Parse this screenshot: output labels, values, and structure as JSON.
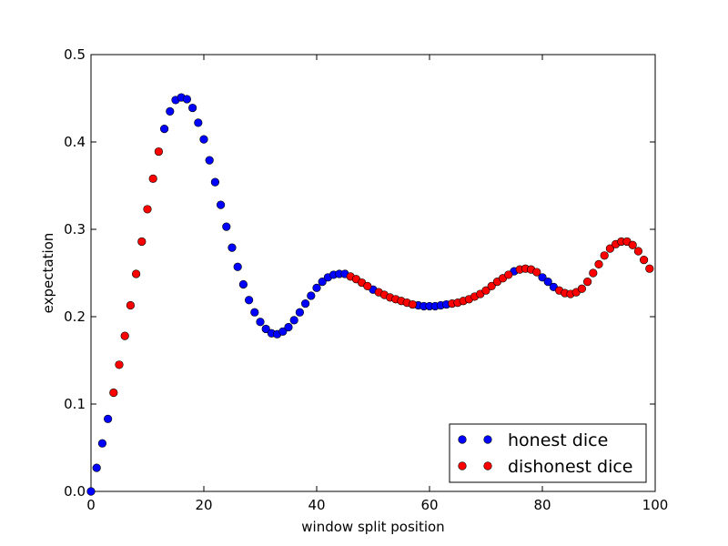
{
  "chart_data": {
    "type": "scatter",
    "title": "",
    "xlabel": "window split position",
    "ylabel": "expectation",
    "xlim": [
      0,
      100
    ],
    "ylim": [
      0,
      0.5
    ],
    "xticks": [
      0,
      20,
      40,
      60,
      80,
      100
    ],
    "xtick_labels": [
      "0",
      "20",
      "40",
      "60",
      "80",
      "100"
    ],
    "yticks": [
      0.0,
      0.1,
      0.2,
      0.3,
      0.4,
      0.5
    ],
    "ytick_labels": [
      "0.0",
      "0.1",
      "0.2",
      "0.3",
      "0.4",
      "0.5"
    ],
    "grid": false,
    "legend_position": "lower-right",
    "series": [
      {
        "name": "honest dice",
        "color": "#0000ff",
        "x": [
          0,
          1,
          2,
          3,
          13,
          14,
          15,
          16,
          17,
          18,
          19,
          20,
          21,
          22,
          23,
          24,
          25,
          26,
          27,
          28,
          29,
          30,
          31,
          32,
          33,
          34,
          35,
          36,
          37,
          38,
          39,
          40,
          41,
          42,
          43,
          44,
          45,
          50,
          58,
          59,
          60,
          61,
          62,
          63,
          75,
          80,
          81,
          82
        ],
        "y": [
          0.0,
          0.027,
          0.055,
          0.083,
          0.415,
          0.435,
          0.448,
          0.451,
          0.449,
          0.439,
          0.422,
          0.403,
          0.379,
          0.354,
          0.328,
          0.303,
          0.279,
          0.257,
          0.237,
          0.219,
          0.205,
          0.194,
          0.186,
          0.181,
          0.18,
          0.183,
          0.188,
          0.196,
          0.205,
          0.215,
          0.224,
          0.233,
          0.24,
          0.245,
          0.248,
          0.249,
          0.249,
          0.231,
          0.213,
          0.212,
          0.212,
          0.212,
          0.213,
          0.214,
          0.252,
          0.245,
          0.24,
          0.234
        ]
      },
      {
        "name": "dishonest dice",
        "color": "#ff0000",
        "x": [
          4,
          5,
          6,
          7,
          8,
          9,
          10,
          11,
          12,
          46,
          47,
          48,
          49,
          51,
          52,
          53,
          54,
          55,
          56,
          57,
          64,
          65,
          66,
          67,
          68,
          69,
          70,
          71,
          72,
          73,
          74,
          76,
          77,
          78,
          79,
          83,
          84,
          85,
          86,
          87,
          88,
          89,
          90,
          91,
          92,
          93,
          94,
          95,
          96,
          97,
          98,
          99
        ],
        "y": [
          0.113,
          0.145,
          0.178,
          0.213,
          0.249,
          0.286,
          0.323,
          0.358,
          0.389,
          0.246,
          0.243,
          0.239,
          0.235,
          0.228,
          0.225,
          0.222,
          0.22,
          0.218,
          0.216,
          0.214,
          0.215,
          0.216,
          0.218,
          0.22,
          0.223,
          0.226,
          0.23,
          0.235,
          0.24,
          0.244,
          0.248,
          0.254,
          0.255,
          0.254,
          0.251,
          0.23,
          0.227,
          0.226,
          0.228,
          0.232,
          0.24,
          0.25,
          0.26,
          0.27,
          0.278,
          0.283,
          0.286,
          0.286,
          0.282,
          0.275,
          0.265,
          0.255
        ]
      }
    ]
  }
}
